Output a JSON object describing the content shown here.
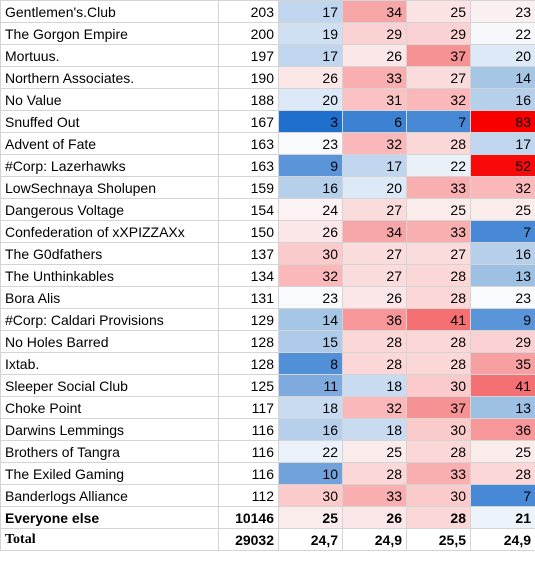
{
  "table": {
    "rows": [
      {
        "name": "Gentlemen's.Club",
        "total": "203",
        "values": [
          "17",
          "34",
          "25",
          "23"
        ],
        "colors": [
          "#bfd6ee",
          "#f7a6a8",
          "#fbe2e3",
          "#fbf0f1"
        ]
      },
      {
        "name": "The Gorgon Empire",
        "total": "200",
        "values": [
          "19",
          "29",
          "29",
          "22"
        ],
        "colors": [
          "#cfe0f2",
          "#fbd2d3",
          "#fbd2d3",
          "#f6f8fc"
        ]
      },
      {
        "name": "Mortuus.",
        "total": "197",
        "values": [
          "17",
          "26",
          "37",
          "20"
        ],
        "colors": [
          "#bfd6ee",
          "#fbe7e8",
          "#f79294",
          "#dde9f6"
        ]
      },
      {
        "name": "Northern Associates.",
        "total": "190",
        "values": [
          "26",
          "33",
          "27",
          "14"
        ],
        "colors": [
          "#fbe7e8",
          "#f9aeb0",
          "#fbdcdd",
          "#a6c6e6"
        ]
      },
      {
        "name": "No Value",
        "total": "188",
        "values": [
          "20",
          "31",
          "32",
          "16"
        ],
        "colors": [
          "#dde9f6",
          "#fbc1c3",
          "#fbb8ba",
          "#b6d0ec"
        ]
      },
      {
        "name": "Snuffed Out",
        "total": "167",
        "values": [
          "3",
          "6",
          "7",
          "83"
        ],
        "colors": [
          "#1f6fcc",
          "#3d82d2",
          "#4889d5",
          "#f80000"
        ]
      },
      {
        "name": "Advent of Fate",
        "total": "163",
        "values": [
          "23",
          "32",
          "28",
          "17"
        ],
        "colors": [
          "#f8fafd",
          "#fbb8ba",
          "#fbd7d8",
          "#bfd6ee"
        ]
      },
      {
        "name": "#Corp: Lazerhawks",
        "total": "163",
        "values": [
          "9",
          "17",
          "22",
          "52"
        ],
        "colors": [
          "#5a95d9",
          "#bfd6ee",
          "#e9f0f8",
          "#f80a0a"
        ]
      },
      {
        "name": "LowSechnaya Sholupen",
        "total": "159",
        "values": [
          "16",
          "20",
          "33",
          "32"
        ],
        "colors": [
          "#b6d0ec",
          "#dde9f6",
          "#f9aeb0",
          "#fbb8ba"
        ]
      },
      {
        "name": "Dangerous Voltage",
        "total": "154",
        "values": [
          "24",
          "27",
          "25",
          "25"
        ],
        "colors": [
          "#fcf2f3",
          "#fbdcdd",
          "#fbecec",
          "#fbecec"
        ]
      },
      {
        "name": "Confederation of xXPIZZAXx",
        "total": "150",
        "values": [
          "26",
          "34",
          "33",
          "7"
        ],
        "colors": [
          "#fbe7e8",
          "#f7a6a8",
          "#f9aeb0",
          "#4889d5"
        ]
      },
      {
        "name": "The G0dfathers",
        "total": "137",
        "values": [
          "30",
          "27",
          "27",
          "16"
        ],
        "colors": [
          "#fbcaca",
          "#fbdcdd",
          "#fbdcdd",
          "#b6d0ec"
        ]
      },
      {
        "name": "The Unthinkables",
        "total": "134",
        "values": [
          "32",
          "27",
          "28",
          "13"
        ],
        "colors": [
          "#fbb8ba",
          "#fbdcdd",
          "#fbd7d8",
          "#9dc0e3"
        ]
      },
      {
        "name": "Bora Alis",
        "total": "131",
        "values": [
          "23",
          "26",
          "28",
          "23"
        ],
        "colors": [
          "#f8fafd",
          "#fbe7e8",
          "#fbd7d8",
          "#f8fafd"
        ]
      },
      {
        "name": "#Corp: Caldari Provisions",
        "total": "129",
        "values": [
          "14",
          "36",
          "41",
          "9"
        ],
        "colors": [
          "#a6c6e6",
          "#f7979a",
          "#f57073",
          "#5a95d9"
        ]
      },
      {
        "name": "No Holes Barred",
        "total": "128",
        "values": [
          "15",
          "28",
          "28",
          "29"
        ],
        "colors": [
          "#aecbe9",
          "#fbd7d8",
          "#fbd7d8",
          "#fbd2d3"
        ]
      },
      {
        "name": "Ixtab.",
        "total": "128",
        "values": [
          "8",
          "28",
          "28",
          "35"
        ],
        "colors": [
          "#5190d7",
          "#fbd7d8",
          "#fbd7d8",
          "#f7a0a2"
        ]
      },
      {
        "name": "Sleeper Social Club",
        "total": "125",
        "values": [
          "11",
          "18",
          "30",
          "41"
        ],
        "colors": [
          "#7faadf",
          "#c8dbf0",
          "#fbcaca",
          "#f57073"
        ]
      },
      {
        "name": "Choke Point",
        "total": "117",
        "values": [
          "18",
          "32",
          "37",
          "13"
        ],
        "colors": [
          "#c8dbf0",
          "#fbb8ba",
          "#f79294",
          "#9dc0e3"
        ]
      },
      {
        "name": "Darwins Lemmings",
        "total": "116",
        "values": [
          "16",
          "18",
          "30",
          "36"
        ],
        "colors": [
          "#b6d0ec",
          "#c8dbf0",
          "#fbcaca",
          "#f7979a"
        ]
      },
      {
        "name": "Brothers of Tangra",
        "total": "116",
        "values": [
          "22",
          "25",
          "28",
          "25"
        ],
        "colors": [
          "#eaf1f9",
          "#fbecec",
          "#fbd7d8",
          "#fbecec"
        ]
      },
      {
        "name": "The Exiled Gaming",
        "total": "116",
        "values": [
          "10",
          "28",
          "33",
          "28"
        ],
        "colors": [
          "#72a2dc",
          "#fbd7d8",
          "#f9aeb0",
          "#fbd7d8"
        ]
      },
      {
        "name": "Banderlogs Alliance",
        "total": "112",
        "values": [
          "30",
          "33",
          "30",
          "7"
        ],
        "colors": [
          "#fbcaca",
          "#f9aeb0",
          "#fbcaca",
          "#4889d5"
        ]
      },
      {
        "name": "Everyone else",
        "total": "10146",
        "values": [
          "25",
          "26",
          "28",
          "21"
        ],
        "colors": [
          "#fbecec",
          "#fbe7e8",
          "#fbd7d8",
          "#edf3fa"
        ],
        "bold": true
      },
      {
        "name": "Total",
        "total": "29032",
        "values": [
          "24,7",
          "24,9",
          "25,5",
          "24,9"
        ],
        "colors": [
          "#ffffff",
          "#ffffff",
          "#ffffff",
          "#ffffff"
        ],
        "bold": true,
        "serif": true
      }
    ]
  }
}
